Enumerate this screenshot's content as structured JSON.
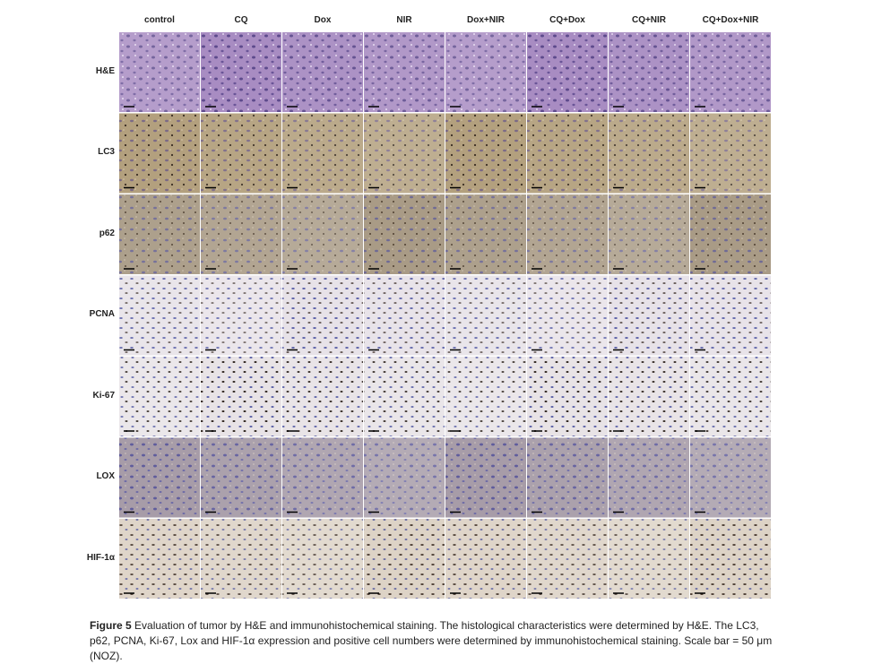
{
  "columns": [
    "control",
    "CQ",
    "Dox",
    "NIR",
    "Dox+NIR",
    "CQ+Dox",
    "CQ+NIR",
    "CQ+Dox+NIR"
  ],
  "rows": [
    "H&E",
    "LC3",
    "p62",
    "PCNA",
    "Ki-67",
    "LOX",
    "HIF-1α"
  ],
  "caption": {
    "label": "Figure 5",
    "text": "Evaluation of tumor by H&E and immunohistochemical staining. The histological characteristics were determined by H&E. The LC3, p62, PCNA, Ki-67, Lox and HIF-1α expression and positive cell numbers were determined by immunohistochemical staining. Scale bar = 50 μm (NOZ)."
  }
}
